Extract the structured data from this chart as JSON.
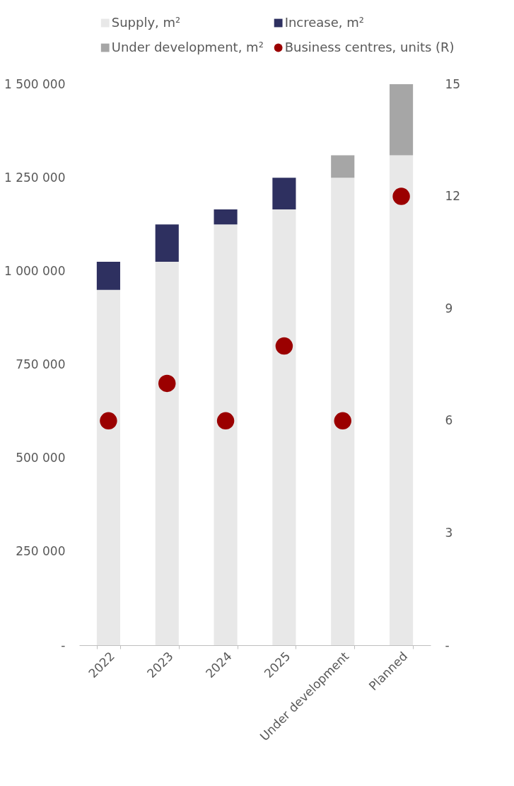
{
  "chart_data": {
    "type": "bar",
    "stacked": true,
    "categories": [
      "2022",
      "2023",
      "2024",
      "2025",
      "Under development",
      "Planned"
    ],
    "series": [
      {
        "name": "Supply, m²",
        "color": "#e8e8e8",
        "values": [
          950000,
          1025000,
          1125000,
          1165000,
          1250000,
          1310000
        ]
      },
      {
        "name": "Increase,  m²",
        "color": "#2e3060",
        "values": [
          75000,
          100000,
          40000,
          85000,
          null,
          null
        ]
      },
      {
        "name": "Under development,  m²",
        "color": "#a6a6a6",
        "values": [
          null,
          null,
          null,
          null,
          60000,
          190000
        ]
      },
      {
        "name": "Business centres, units (R)",
        "type": "scatter",
        "axis": "y2",
        "marker": "circle",
        "color": "#9b0000",
        "values": [
          6,
          7,
          6,
          8,
          6,
          12
        ]
      }
    ],
    "ylim": [
      0,
      1500000
    ],
    "yticks": [
      {
        "value": 0,
        "label": "-"
      },
      {
        "value": 250000,
        "label": "250 000"
      },
      {
        "value": 500000,
        "label": "500 000"
      },
      {
        "value": 750000,
        "label": "750 000"
      },
      {
        "value": 1000000,
        "label": "1 000 000"
      },
      {
        "value": 1250000,
        "label": "1 250 000"
      },
      {
        "value": 1500000,
        "label": "1 500 000"
      }
    ],
    "y2lim": [
      0,
      15
    ],
    "y2ticks": [
      {
        "value": 0,
        "label": "-"
      },
      3,
      6,
      9,
      12,
      15
    ],
    "legend": "top",
    "grid": false
  }
}
